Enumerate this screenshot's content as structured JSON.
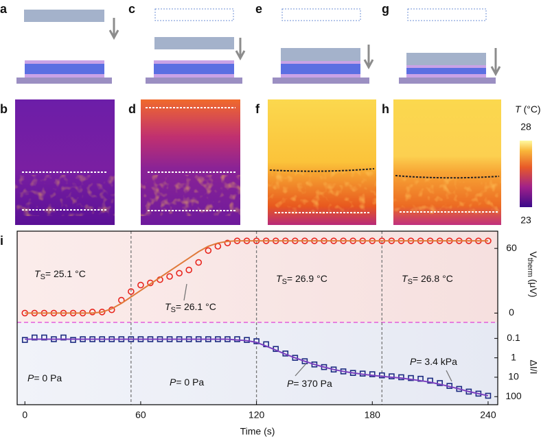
{
  "panel_labels": [
    "a",
    "c",
    "e",
    "g",
    "b",
    "d",
    "f",
    "h",
    "i"
  ],
  "colorbar": {
    "symbol": "T",
    "unit": "(°C)",
    "max": 28,
    "min": 23
  },
  "chart_data": {
    "type": "line",
    "x_label": "Time (s)",
    "y_label": {
      "symbol": "V",
      "subscript": "therm",
      "unit": "(μV)"
    },
    "y2_label": "ΔI/I",
    "x": [
      0,
      5,
      10,
      15,
      20,
      25,
      30,
      35,
      40,
      45,
      50,
      55,
      60,
      65,
      70,
      75,
      80,
      85,
      90,
      95,
      100,
      105,
      110,
      115,
      120,
      125,
      130,
      135,
      140,
      145,
      150,
      155,
      160,
      165,
      170,
      175,
      180,
      185,
      190,
      195,
      200,
      205,
      210,
      215,
      220,
      225,
      230,
      235,
      240
    ],
    "xlim": [
      -4,
      245
    ],
    "xticks": [
      0,
      60,
      120,
      180,
      240
    ],
    "ylim": [
      -85,
      76
    ],
    "yticks": [
      0,
      60
    ],
    "y2lim": [
      3e-07,
      260
    ],
    "y2ticks": [
      0.1,
      1,
      10,
      100
    ],
    "y2_log": true,
    "y2_inverted": true,
    "phase_boundaries": [
      55,
      120,
      185
    ],
    "series": [
      {
        "color": "#e8241c",
        "axis": "y",
        "marker": "circle",
        "values": [
          0,
          0,
          0,
          0,
          0,
          0,
          0,
          1,
          1,
          3,
          12,
          20,
          26,
          28,
          31,
          34,
          37,
          40,
          47,
          58,
          62,
          65,
          67,
          67,
          67,
          67,
          67,
          67,
          67,
          67,
          67,
          67,
          67,
          67,
          67,
          67,
          67,
          67,
          67,
          67,
          67,
          67,
          67,
          67,
          67,
          67,
          67,
          67,
          67
        ]
      },
      {
        "color": "#e07a3a",
        "axis": "y",
        "marker": "none",
        "values": [
          0,
          0,
          0,
          0,
          0,
          0,
          0,
          0,
          1,
          4,
          9,
          15,
          21,
          27,
          33,
          39,
          45,
          51,
          57,
          62,
          65,
          66.5,
          67,
          67,
          67,
          67,
          67,
          67,
          67,
          67,
          67,
          67,
          67,
          67,
          67,
          67,
          67,
          67,
          67,
          67,
          67,
          67,
          67,
          67,
          67,
          67,
          67,
          67,
          67
        ]
      },
      {
        "color": "#1b2a80",
        "axis": "y2",
        "marker": "square",
        "values": [
          0.12,
          0.09,
          0.09,
          0.11,
          0.09,
          0.12,
          0.11,
          0.11,
          0.11,
          0.11,
          0.11,
          0.11,
          0.11,
          0.11,
          0.11,
          0.11,
          0.11,
          0.11,
          0.11,
          0.11,
          0.11,
          0.11,
          0.11,
          0.12,
          0.14,
          0.2,
          0.35,
          0.6,
          1,
          1.5,
          2.2,
          3,
          4,
          5,
          6,
          6.5,
          7,
          8,
          9,
          10,
          11,
          12,
          15,
          20,
          28,
          40,
          55,
          70,
          90
        ]
      },
      {
        "color": "#7b3fbf",
        "axis": "y2",
        "marker": "none",
        "values": [
          0.11,
          0.11,
          0.11,
          0.11,
          0.11,
          0.11,
          0.11,
          0.11,
          0.11,
          0.11,
          0.11,
          0.11,
          0.11,
          0.11,
          0.11,
          0.11,
          0.11,
          0.11,
          0.11,
          0.11,
          0.11,
          0.11,
          0.12,
          0.13,
          0.16,
          0.25,
          0.4,
          0.65,
          1,
          1.5,
          2.2,
          3,
          4,
          5,
          6,
          7,
          8,
          9,
          10,
          11,
          13,
          15,
          18,
          23,
          30,
          40,
          55,
          70,
          90
        ]
      }
    ],
    "annotations": [
      {
        "symbol": "T",
        "subscript": "S",
        "text": "= 25.1 °C"
      },
      {
        "symbol": "T",
        "subscript": "S",
        "text": "= 26.1 °C"
      },
      {
        "symbol": "T",
        "subscript": "S",
        "text": "= 26.9 °C"
      },
      {
        "symbol": "T",
        "subscript": "S",
        "text": "= 26.8 °C"
      },
      {
        "symbol": "P",
        "text": "= 0 Pa"
      },
      {
        "symbol": "P",
        "text": "= 0 Pa"
      },
      {
        "symbol": "P",
        "text": "= 370 Pa"
      },
      {
        "symbol": "P",
        "text": "= 3.4 kPa"
      }
    ]
  }
}
